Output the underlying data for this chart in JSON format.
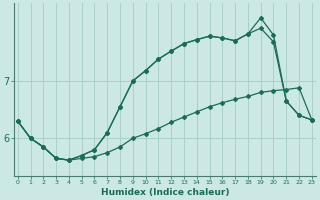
{
  "xlabel": "Humidex (Indice chaleur)",
  "ylabel": "",
  "background_color": "#cce8e4",
  "grid_color": "#aacfcb",
  "line_color": "#1a6b5a",
  "x": [
    0,
    1,
    2,
    3,
    4,
    5,
    6,
    7,
    8,
    9,
    10,
    11,
    12,
    13,
    14,
    15,
    16,
    17,
    18,
    19,
    20,
    21,
    22,
    23
  ],
  "y_top": [
    6.3,
    6.0,
    5.85,
    5.65,
    5.62,
    5.7,
    5.8,
    6.1,
    6.55,
    7.0,
    7.18,
    7.38,
    7.52,
    7.65,
    7.72,
    7.78,
    7.75,
    7.7,
    7.82,
    8.1,
    7.8,
    6.65,
    6.4,
    6.32
  ],
  "y_mid": [
    6.3,
    6.0,
    5.85,
    5.65,
    5.62,
    5.7,
    5.8,
    6.1,
    6.55,
    7.0,
    7.18,
    7.38,
    7.52,
    7.65,
    7.72,
    7.78,
    7.75,
    7.7,
    7.82,
    7.92,
    7.68,
    6.65,
    6.4,
    6.32
  ],
  "y_bot": [
    6.3,
    6.0,
    5.85,
    5.65,
    5.62,
    5.65,
    5.68,
    5.75,
    5.85,
    6.0,
    6.08,
    6.17,
    6.28,
    6.37,
    6.46,
    6.55,
    6.62,
    6.68,
    6.73,
    6.8,
    6.83,
    6.85,
    6.88,
    6.32
  ],
  "yticks": [
    6,
    7
  ],
  "xticks": [
    0,
    1,
    2,
    3,
    4,
    5,
    6,
    7,
    8,
    9,
    10,
    11,
    12,
    13,
    14,
    15,
    16,
    17,
    18,
    19,
    20,
    21,
    22,
    23
  ],
  "ylim": [
    5.35,
    8.35
  ],
  "xlim": [
    -0.3,
    23.3
  ],
  "figsize": [
    3.2,
    2.0
  ],
  "dpi": 100
}
